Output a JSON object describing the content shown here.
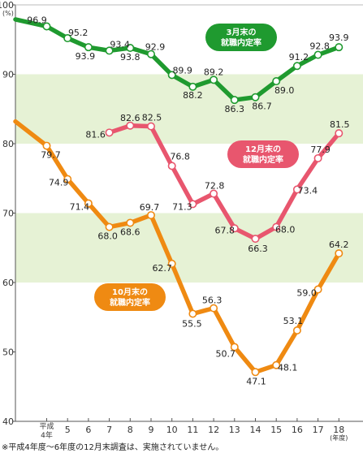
{
  "chart_data": {
    "type": "line",
    "y_unit": "(%)",
    "x_unit": "(年度)",
    "ylim": [
      40,
      100
    ],
    "yticks": [
      40,
      50,
      60,
      70,
      80,
      90,
      100
    ],
    "x_ticks": [
      {
        "x": 4,
        "lines": [
          "平成",
          "4年"
        ]
      },
      {
        "x": 5,
        "lines": [
          "5"
        ]
      },
      {
        "x": 6,
        "lines": [
          "6"
        ]
      },
      {
        "x": 7,
        "lines": [
          "7"
        ]
      },
      {
        "x": 8,
        "lines": [
          "8"
        ]
      },
      {
        "x": 9,
        "lines": [
          "9"
        ]
      },
      {
        "x": 10,
        "lines": [
          "10"
        ]
      },
      {
        "x": 11,
        "lines": [
          "11"
        ]
      },
      {
        "x": 12,
        "lines": [
          "12"
        ]
      },
      {
        "x": 13,
        "lines": [
          "13"
        ]
      },
      {
        "x": 14,
        "lines": [
          "14"
        ]
      },
      {
        "x": 15,
        "lines": [
          "15"
        ]
      },
      {
        "x": 16,
        "lines": [
          "16"
        ]
      },
      {
        "x": 17,
        "lines": [
          "17"
        ]
      },
      {
        "x": 18,
        "lines": [
          "18"
        ]
      }
    ],
    "series": [
      {
        "name": "3月末の就職内定率",
        "label_lines": [
          "3月末の",
          "就職内定率"
        ],
        "color": "#1f9a2f",
        "x": [
          4,
          5,
          6,
          7,
          8,
          9,
          10,
          11,
          12,
          13,
          14,
          15,
          16,
          17,
          18
        ],
        "values": [
          96.9,
          95.2,
          93.9,
          93.4,
          93.8,
          92.9,
          89.9,
          88.2,
          89.2,
          86.3,
          86.7,
          89.0,
          91.2,
          92.8,
          93.9
        ],
        "labels": [
          "96.9",
          "95.2",
          "93.9",
          "93.4",
          "93.8",
          "92.9",
          "89.9",
          "88.2",
          "89.2",
          "86.3",
          "86.7",
          "89.0",
          "91.2",
          "92.8",
          "93.9"
        ],
        "lead_in": 97.9
      },
      {
        "name": "12月末の就職内定率",
        "label_lines": [
          "12月末の",
          "就職内定率"
        ],
        "color": "#e8566e",
        "x": [
          7,
          8,
          9,
          10,
          11,
          12,
          13,
          14,
          15,
          16,
          17,
          18
        ],
        "values": [
          81.6,
          82.6,
          82.5,
          76.8,
          71.3,
          72.8,
          67.8,
          66.3,
          68.0,
          73.4,
          77.9,
          81.5
        ],
        "labels": [
          "81.6",
          "82.6",
          "82.5",
          "76.8",
          "71.3",
          "72.8",
          "67.8",
          "66.3",
          "68.0",
          "73.4",
          "77.9",
          "81.5"
        ]
      },
      {
        "name": "10月末の就職内定率",
        "label_lines": [
          "10月末の",
          "就職内定率"
        ],
        "color": "#ef8a12",
        "x": [
          4,
          5,
          6,
          7,
          8,
          9,
          10,
          11,
          12,
          13,
          14,
          15,
          16,
          17,
          18
        ],
        "values": [
          79.7,
          74.9,
          71.4,
          68.0,
          68.6,
          69.7,
          62.7,
          55.5,
          56.3,
          50.7,
          47.1,
          48.1,
          53.1,
          59.0,
          64.2
        ],
        "labels": [
          "79.7",
          "74.9",
          "71.4",
          "68.0",
          "68.6",
          "69.7",
          "62.7",
          "55.5",
          "56.3",
          "50.7",
          "47.1",
          "48.1",
          "53.1",
          "59.0",
          "64.2"
        ],
        "lead_in": 83.2
      }
    ],
    "band_color": "#e6f2d5",
    "grid": false,
    "note": "※平成4年度～6年度の12月末調査は、実施されていません。"
  }
}
